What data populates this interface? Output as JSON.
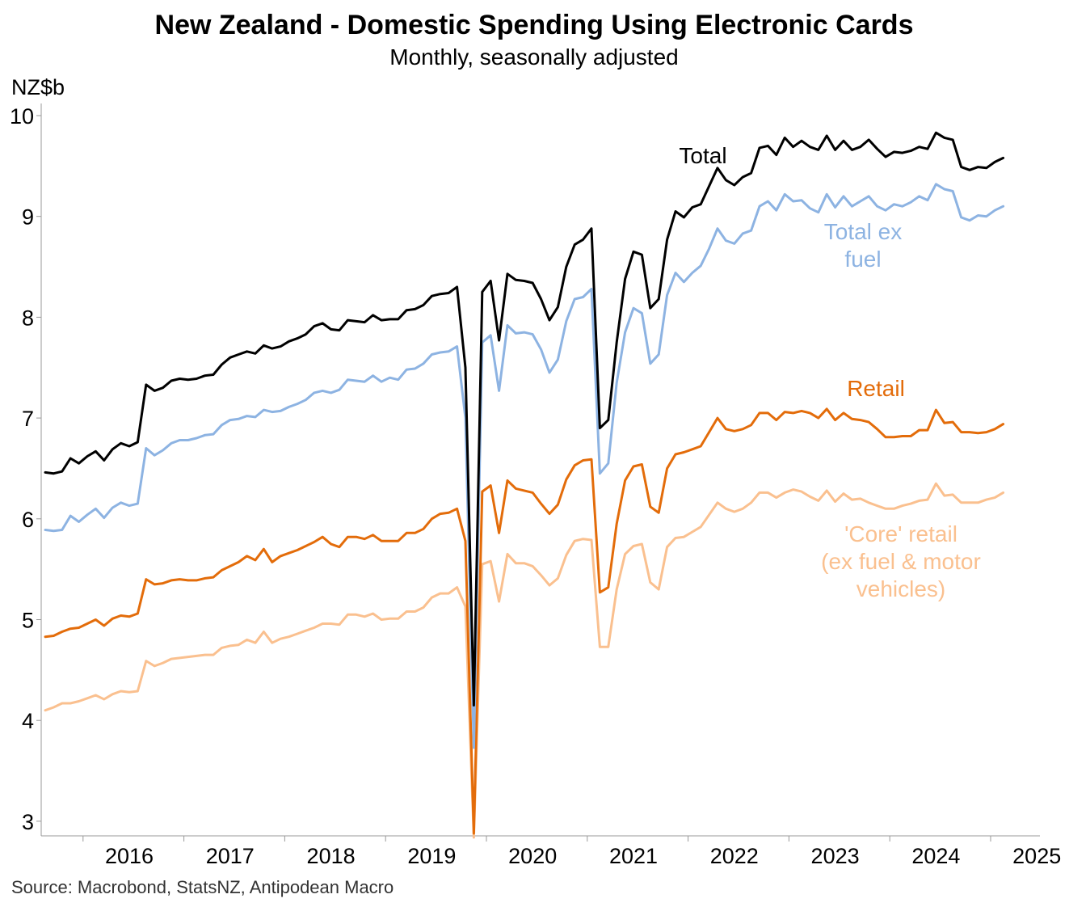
{
  "chart_data": {
    "type": "line",
    "title": "New Zealand - Domestic Spending Using Electronic Cards",
    "subtitle": "Monthly, seasonally adjusted",
    "ylabel": "NZ$b",
    "xlabel": "",
    "ylim": [
      2.85,
      10.1
    ],
    "yticks": [
      3,
      4,
      5,
      6,
      7,
      8,
      9,
      10
    ],
    "x_start": "2015-08",
    "x_labels": [
      "2016",
      "2017",
      "2018",
      "2019",
      "2020",
      "2021",
      "2022",
      "2023",
      "2024",
      "2025"
    ],
    "grid": false,
    "source": "Source: Macrobond, StatsNZ, Antipodean Macro",
    "series": [
      {
        "name": "Total",
        "label_lines": [
          "Total"
        ],
        "color": "#000000",
        "values": [
          6.46,
          6.45,
          6.47,
          6.6,
          6.55,
          6.62,
          6.67,
          6.58,
          6.69,
          6.75,
          6.72,
          6.76,
          7.33,
          7.27,
          7.3,
          7.37,
          7.39,
          7.38,
          7.39,
          7.42,
          7.43,
          7.53,
          7.6,
          7.63,
          7.66,
          7.64,
          7.72,
          7.69,
          7.71,
          7.76,
          7.79,
          7.83,
          7.91,
          7.94,
          7.88,
          7.87,
          7.97,
          7.96,
          7.95,
          8.02,
          7.97,
          7.98,
          7.98,
          8.07,
          8.08,
          8.12,
          8.21,
          8.23,
          8.24,
          8.3,
          7.5,
          4.15,
          8.25,
          8.36,
          7.77,
          8.43,
          8.37,
          8.36,
          8.34,
          8.18,
          7.97,
          8.1,
          8.5,
          8.72,
          8.77,
          8.88,
          6.9,
          6.98,
          7.75,
          8.38,
          8.65,
          8.62,
          8.09,
          8.18,
          8.77,
          9.05,
          8.99,
          9.09,
          9.12,
          9.3,
          9.48,
          9.36,
          9.31,
          9.39,
          9.43,
          9.68,
          9.7,
          9.61,
          9.78,
          9.69,
          9.75,
          9.69,
          9.66,
          9.8,
          9.66,
          9.75,
          9.66,
          9.69,
          9.76,
          9.67,
          9.59,
          9.64,
          9.63,
          9.65,
          9.69,
          9.67,
          9.83,
          9.78,
          9.76,
          9.49,
          9.46,
          9.49,
          9.48,
          9.54,
          9.58
        ]
      },
      {
        "name": "Total ex fuel",
        "label_lines": [
          "Total ex",
          "fuel"
        ],
        "color": "#8db3e2",
        "values": [
          5.89,
          5.88,
          5.89,
          6.03,
          5.97,
          6.04,
          6.1,
          6.01,
          6.11,
          6.16,
          6.13,
          6.15,
          6.7,
          6.63,
          6.68,
          6.75,
          6.78,
          6.78,
          6.8,
          6.83,
          6.84,
          6.93,
          6.98,
          6.99,
          7.02,
          7.01,
          7.08,
          7.06,
          7.07,
          7.11,
          7.14,
          7.18,
          7.25,
          7.27,
          7.25,
          7.28,
          7.38,
          7.37,
          7.36,
          7.42,
          7.36,
          7.4,
          7.38,
          7.48,
          7.49,
          7.54,
          7.63,
          7.65,
          7.66,
          7.71,
          7.0,
          3.73,
          7.75,
          7.82,
          7.27,
          7.92,
          7.84,
          7.85,
          7.83,
          7.68,
          7.45,
          7.58,
          7.96,
          8.18,
          8.2,
          8.28,
          6.45,
          6.55,
          7.35,
          7.85,
          8.09,
          8.04,
          7.54,
          7.63,
          8.22,
          8.44,
          8.35,
          8.44,
          8.51,
          8.68,
          8.88,
          8.76,
          8.73,
          8.83,
          8.86,
          9.1,
          9.15,
          9.06,
          9.22,
          9.15,
          9.16,
          9.08,
          9.04,
          9.22,
          9.09,
          9.2,
          9.1,
          9.15,
          9.2,
          9.1,
          9.06,
          9.12,
          9.1,
          9.14,
          9.2,
          9.16,
          9.32,
          9.27,
          9.25,
          8.99,
          8.96,
          9.01,
          9.0,
          9.06,
          9.1
        ]
      },
      {
        "name": "Retail",
        "label_lines": [
          "Retail"
        ],
        "color": "#e36c0a",
        "values": [
          4.83,
          4.84,
          4.88,
          4.91,
          4.92,
          4.96,
          5.0,
          4.94,
          5.01,
          5.04,
          5.03,
          5.06,
          5.4,
          5.35,
          5.36,
          5.39,
          5.4,
          5.39,
          5.39,
          5.41,
          5.42,
          5.49,
          5.53,
          5.57,
          5.63,
          5.59,
          5.7,
          5.57,
          5.63,
          5.66,
          5.69,
          5.73,
          5.77,
          5.82,
          5.75,
          5.72,
          5.82,
          5.82,
          5.8,
          5.84,
          5.78,
          5.78,
          5.78,
          5.86,
          5.86,
          5.9,
          6.0,
          6.05,
          6.06,
          6.1,
          5.78,
          2.88,
          6.27,
          6.33,
          5.86,
          6.38,
          6.3,
          6.28,
          6.26,
          6.15,
          6.05,
          6.14,
          6.39,
          6.53,
          6.58,
          6.59,
          5.27,
          5.32,
          5.95,
          6.38,
          6.52,
          6.54,
          6.12,
          6.06,
          6.5,
          6.64,
          6.66,
          6.69,
          6.72,
          6.86,
          7.0,
          6.89,
          6.87,
          6.89,
          6.93,
          7.05,
          7.05,
          6.98,
          7.06,
          7.05,
          7.07,
          7.05,
          7.0,
          7.09,
          6.98,
          7.05,
          6.99,
          6.98,
          6.96,
          6.89,
          6.81,
          6.81,
          6.82,
          6.82,
          6.88,
          6.88,
          7.08,
          6.95,
          6.96,
          6.86,
          6.86,
          6.85,
          6.86,
          6.89,
          6.94
        ]
      },
      {
        "name": "'Core' retail (ex fuel & motor vehicles)",
        "label_lines": [
          "'Core' retail",
          "(ex fuel & motor",
          "vehicles)"
        ],
        "color": "#fac08f",
        "values": [
          4.1,
          4.13,
          4.17,
          4.17,
          4.19,
          4.22,
          4.25,
          4.21,
          4.26,
          4.29,
          4.28,
          4.29,
          4.59,
          4.54,
          4.57,
          4.61,
          4.62,
          4.63,
          4.64,
          4.65,
          4.65,
          4.72,
          4.74,
          4.75,
          4.8,
          4.77,
          4.88,
          4.77,
          4.81,
          4.83,
          4.86,
          4.89,
          4.92,
          4.96,
          4.96,
          4.95,
          5.05,
          5.05,
          5.03,
          5.06,
          5.0,
          5.01,
          5.01,
          5.08,
          5.08,
          5.12,
          5.22,
          5.26,
          5.26,
          5.32,
          5.13,
          2.84,
          5.55,
          5.58,
          5.18,
          5.65,
          5.56,
          5.56,
          5.53,
          5.44,
          5.34,
          5.41,
          5.64,
          5.78,
          5.8,
          5.79,
          4.73,
          4.73,
          5.3,
          5.65,
          5.73,
          5.75,
          5.37,
          5.3,
          5.72,
          5.81,
          5.82,
          5.87,
          5.92,
          6.04,
          6.16,
          6.1,
          6.07,
          6.1,
          6.16,
          6.26,
          6.26,
          6.21,
          6.26,
          6.29,
          6.27,
          6.22,
          6.18,
          6.28,
          6.17,
          6.25,
          6.19,
          6.2,
          6.16,
          6.13,
          6.1,
          6.1,
          6.13,
          6.15,
          6.18,
          6.19,
          6.35,
          6.23,
          6.24,
          6.16,
          6.16,
          6.16,
          6.19,
          6.21,
          6.26
        ]
      }
    ]
  }
}
